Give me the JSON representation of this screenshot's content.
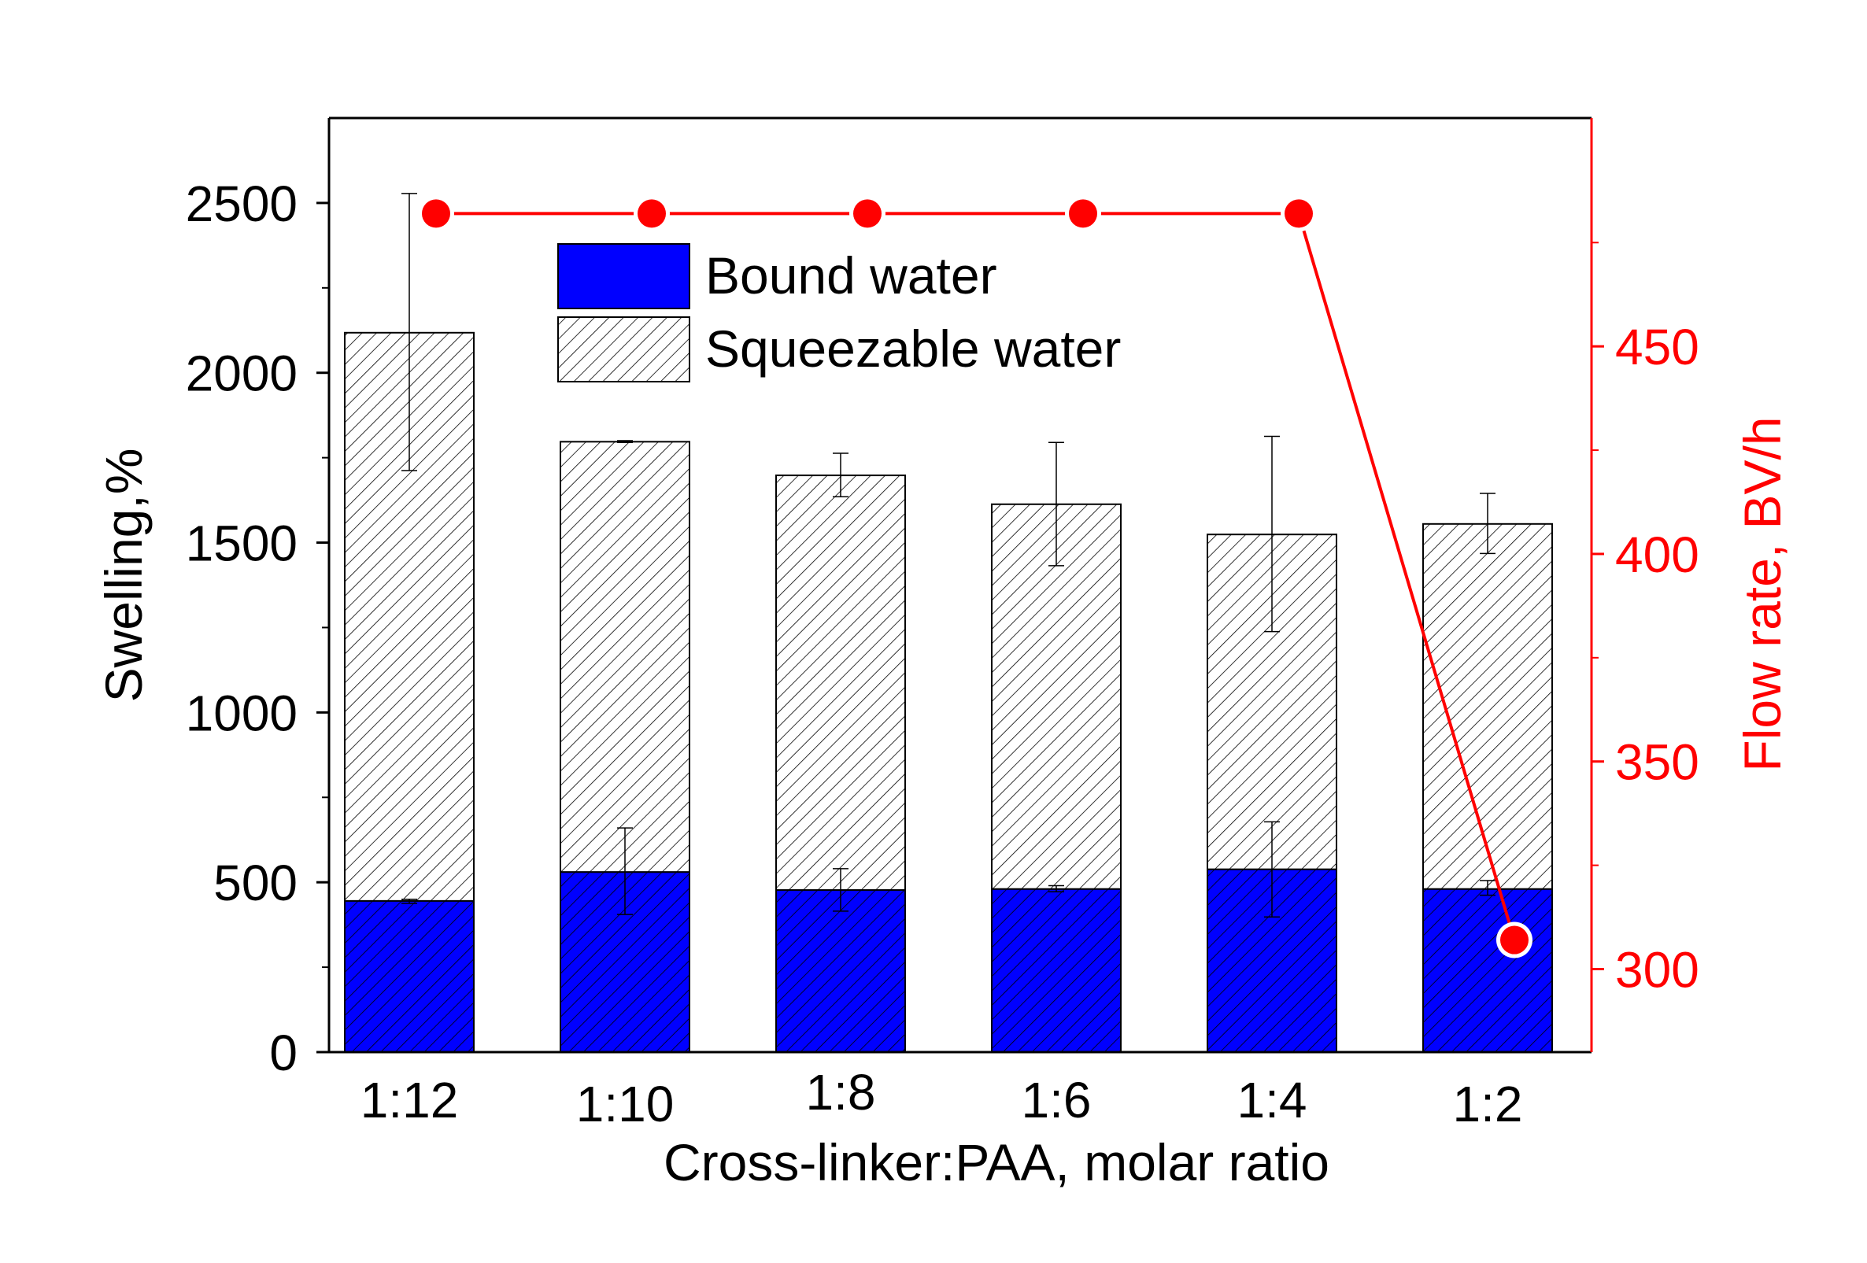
{
  "chart_data": {
    "type": "bar",
    "stacked": true,
    "xlabel": "Cross-linker:PAA, molar ratio",
    "ylabel": "Swelling,%",
    "y2label": "Flow rate, BV/h",
    "categories": [
      "1:12",
      "1:10",
      "1:8",
      "1:6",
      "1:4",
      "1:2"
    ],
    "ylim": [
      0,
      2750
    ],
    "yticks": [
      0,
      500,
      1000,
      1500,
      2000,
      2500
    ],
    "y2lim": [
      280,
      505
    ],
    "y2ticks": [
      300,
      350,
      400,
      450
    ],
    "series": [
      {
        "name": "Bound water",
        "color": "#0000ff",
        "values": [
          445,
          530,
          477,
          480,
          538,
          480
        ],
        "err_low": [
          438,
          405,
          415,
          472,
          398,
          462
        ],
        "err_high": [
          450,
          660,
          540,
          490,
          678,
          505
        ]
      },
      {
        "name": "Squeezable water",
        "color": "#ffffff",
        "totals": [
          2118,
          1797,
          1698,
          1613,
          1524,
          1555
        ],
        "err_low": [
          1712,
          1795,
          1635,
          1432,
          1238,
          1468
        ],
        "err_high": [
          2528,
          1800,
          1763,
          1795,
          1813,
          1645
        ]
      }
    ],
    "line_series": {
      "name": "Flow rate",
      "axis": "right",
      "color": "#ff0000",
      "values": [
        482,
        482,
        482,
        482,
        482,
        307
      ]
    },
    "legend": {
      "position": "top-center",
      "entries": [
        "Bound water",
        "Squeezable water"
      ]
    }
  }
}
